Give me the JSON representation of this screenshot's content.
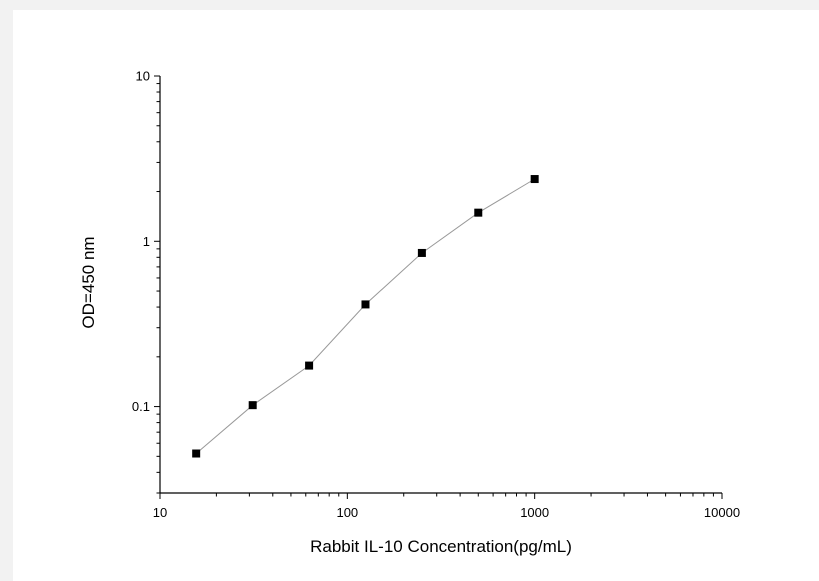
{
  "chart_data": {
    "type": "scatter",
    "title": "",
    "xlabel": "Rabbit IL-10 Concentration(pg/mL)",
    "ylabel": "OD=450 nm",
    "x_scale": "log",
    "y_scale": "log",
    "xlim": [
      10,
      10000
    ],
    "ylim": [
      0.03,
      10
    ],
    "x_ticks": [
      10,
      100,
      1000,
      10000
    ],
    "x_tick_labels": [
      "10",
      "100",
      "1000",
      "10000"
    ],
    "y_ticks": [
      0.1,
      1,
      10
    ],
    "y_tick_labels": [
      "0.1",
      "1",
      "10"
    ],
    "grid": false,
    "legend": "none",
    "series": [
      {
        "x": [
          15.6,
          31.25,
          62.5,
          125,
          250,
          500,
          1000
        ],
        "y": [
          0.052,
          0.102,
          0.177,
          0.415,
          0.85,
          1.49,
          2.38
        ],
        "marker": "square",
        "marker_color": "#000000",
        "line_color": "#999999"
      }
    ]
  }
}
